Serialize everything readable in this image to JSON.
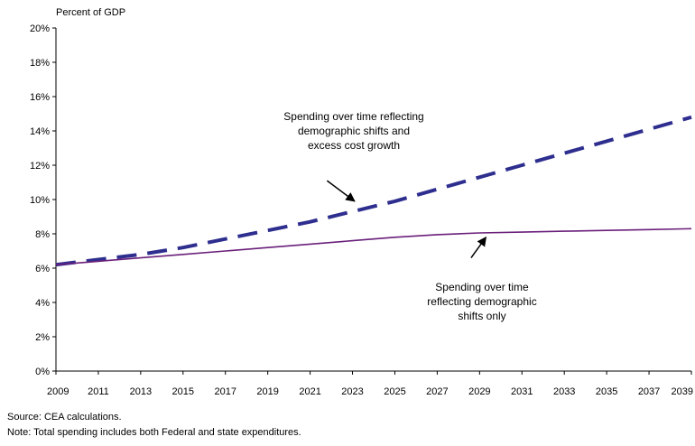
{
  "chart_data": {
    "type": "line",
    "ylabel": "Percent of GDP",
    "xlim": [
      2009,
      2039
    ],
    "ylim": [
      0,
      20
    ],
    "y_tick_values": [
      0,
      2,
      4,
      6,
      8,
      10,
      12,
      14,
      16,
      18,
      20
    ],
    "y_tick_labels": [
      "0%",
      "2%",
      "4%",
      "6%",
      "8%",
      "10%",
      "12%",
      "14%",
      "16%",
      "18%",
      "20%"
    ],
    "x_tick_values": [
      2009,
      2011,
      2013,
      2015,
      2017,
      2019,
      2021,
      2023,
      2025,
      2027,
      2029,
      2031,
      2033,
      2035,
      2037,
      2039
    ],
    "x_tick_labels": [
      "2009",
      "2011",
      "2013",
      "2015",
      "2017",
      "2019",
      "2021",
      "2023",
      "2025",
      "2027",
      "2029",
      "2031",
      "2033",
      "2035",
      "2037",
      "2039"
    ],
    "grid": false,
    "series": [
      {
        "style": "dashed",
        "color": "#2e2e8f",
        "x": [
          2009,
          2011,
          2013,
          2015,
          2017,
          2019,
          2021,
          2023,
          2025,
          2027,
          2029,
          2031,
          2033,
          2035,
          2037,
          2039
        ],
        "y": [
          6.2,
          6.5,
          6.8,
          7.2,
          7.7,
          8.2,
          8.7,
          9.3,
          9.9,
          10.6,
          11.3,
          12.0,
          12.7,
          13.4,
          14.1,
          14.8
        ]
      },
      {
        "style": "solid",
        "color": "#6a1f7a",
        "x": [
          2009,
          2011,
          2013,
          2015,
          2017,
          2019,
          2021,
          2023,
          2025,
          2027,
          2029,
          2031,
          2033,
          2035,
          2037,
          2039
        ],
        "y": [
          6.2,
          6.4,
          6.6,
          6.8,
          7.0,
          7.2,
          7.4,
          7.6,
          7.8,
          7.95,
          8.05,
          8.1,
          8.15,
          8.2,
          8.25,
          8.3
        ]
      }
    ],
    "annotations": [
      {
        "lines": [
          "Spending over time reflecting",
          "demographic shifts and",
          "excess cost growth"
        ],
        "arrow_from": [
          2021.8,
          11.1
        ],
        "arrow_to": [
          2023.1,
          9.9
        ]
      },
      {
        "lines": [
          "Spending over time",
          "reflecting demographic",
          "shifts only"
        ],
        "arrow_from": [
          2028.6,
          6.6
        ],
        "arrow_to": [
          2029.3,
          7.8
        ]
      }
    ]
  },
  "footnotes": {
    "source": "Source: CEA calculations.",
    "note": "Note: Total spending includes both Federal and state expenditures."
  }
}
